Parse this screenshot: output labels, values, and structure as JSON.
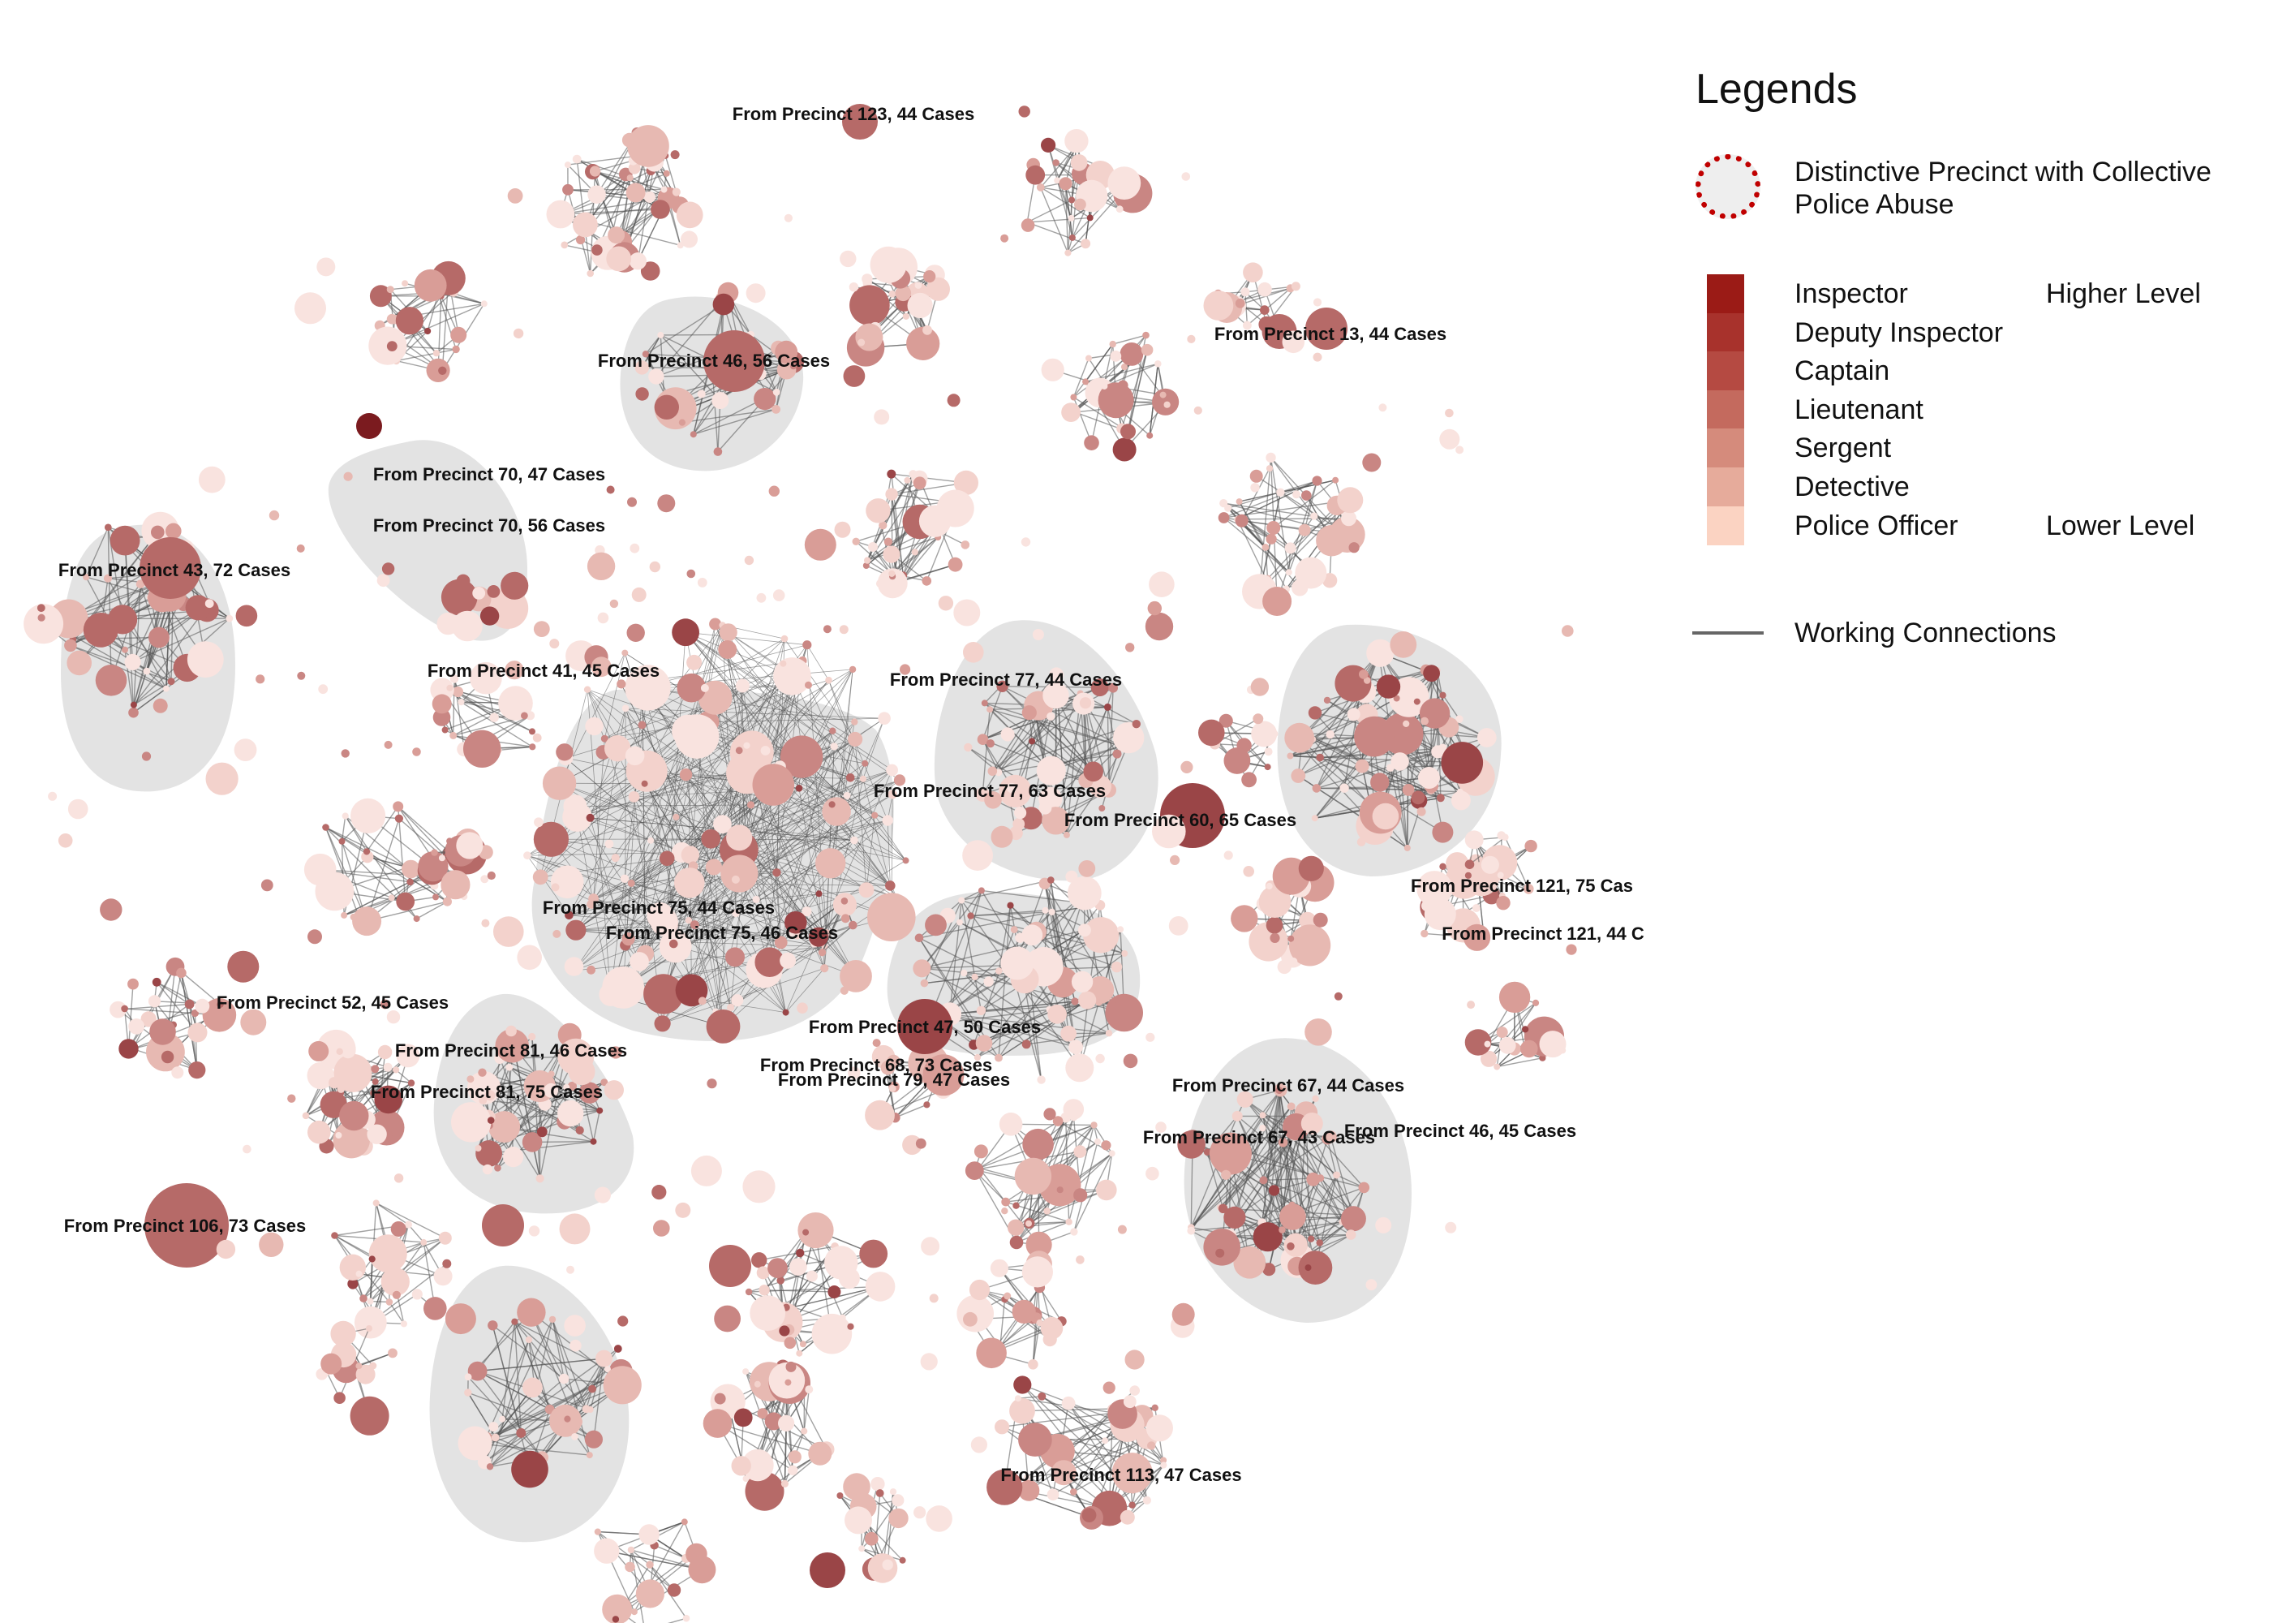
{
  "legend": {
    "title": "Legends",
    "distinctive": "Distinctive Precinct with Collective\nPolice Abuse",
    "ranks": [
      {
        "label": "Inspector",
        "color": "#9b1b16"
      },
      {
        "label": "Deputy Inspector",
        "color": "#a8322c"
      },
      {
        "label": "Captain",
        "color": "#b54a42"
      },
      {
        "label": "Lieutenant",
        "color": "#c46a5e"
      },
      {
        "label": "Sergent",
        "color": "#d58b7c"
      },
      {
        "label": "Detective",
        "color": "#e6ab9b"
      },
      {
        "label": "Police Officer",
        "color": "#fbd3c2"
      }
    ],
    "higher": "Higher Level",
    "lower": "Lower Level",
    "connections": "Working Connections"
  },
  "cluster_labels": [
    "From Precinct 123, 44 Cases",
    "From Precinct 46, 56 Cases",
    "From Precinct 13, 44 Cases",
    "From Precinct 70, 47 Cases",
    "From Precinct 70, 56 Cases",
    "From Precinct 43, 72 Cases",
    "From Precinct 41, 45 Cases",
    "From Precinct 77, 44 Cases",
    "From Precinct 77, 63 Cases",
    "From Precinct 60, 65 Cases",
    "From Precinct 121, 75 Cas",
    "From Precinct 121, 44 C",
    "From Precinct 75, 44 Cases",
    "From Precinct 75, 46 Cases",
    "From Precinct 52, 45 Cases",
    "From Precinct 47, 50 Cases",
    "From Precinct 81, 46 Cases",
    "From Precinct 68, 73 Cases",
    "From Precinct 79, 47 Cases",
    "From Precinct 81, 75 Cases",
    "From Precinct 67, 44 Cases",
    "From Precinct 67, 43 Cases",
    "From Precinct 46, 45 Cases",
    "From Precinct 106, 73 Cases",
    "From Precinct 113, 47 Cases"
  ]
}
